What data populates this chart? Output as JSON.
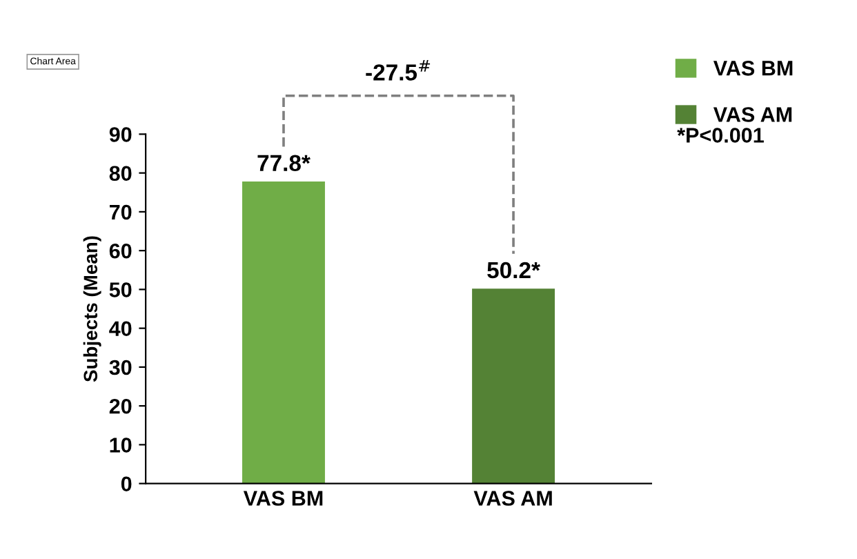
{
  "chart_data": {
    "type": "bar",
    "categories": [
      "VAS BM",
      "VAS AM"
    ],
    "series": [
      {
        "name": "VAS BM",
        "color": "#70ad47",
        "values": [
          77.8,
          null
        ],
        "value_labels": [
          "77.8*",
          null
        ]
      },
      {
        "name": "VAS AM",
        "color": "#548235",
        "values": [
          null,
          50.2
        ],
        "value_labels": [
          null,
          "50.2*"
        ]
      }
    ],
    "ylabel": "Subjects (Mean)",
    "ylim": [
      0,
      90
    ],
    "yticks": [
      0,
      10,
      20,
      30,
      40,
      50,
      60,
      70,
      80,
      90
    ],
    "grid": false,
    "legend": "top right",
    "annotations": [
      "-27.5$^{#}$",
      "*P<0.001",
      "Chart Area"
    ]
  }
}
